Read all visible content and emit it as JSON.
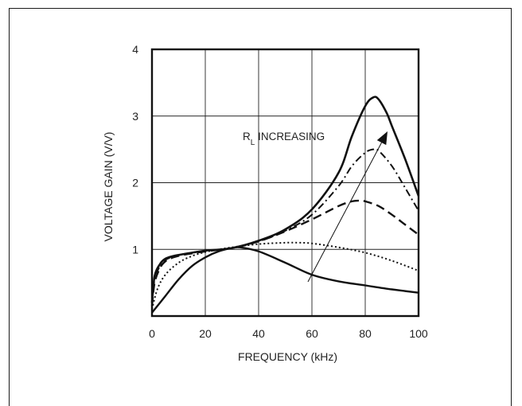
{
  "chart_data": {
    "type": "line",
    "title": "",
    "xlabel": "FREQUENCY (kHz)",
    "ylabel": "VOLTAGE GAIN (V/V)",
    "xlim": [
      0,
      100
    ],
    "ylim": [
      0,
      4
    ],
    "x_ticks": [
      0,
      20,
      40,
      60,
      80,
      100
    ],
    "y_ticks": [
      1,
      2,
      3,
      4
    ],
    "grid": true,
    "annotation": {
      "text_main": "R",
      "text_sub": "L",
      "text_rest": " INCREASING"
    },
    "series": [
      {
        "style": "solid-low",
        "x": [
          0,
          5,
          10,
          15,
          20,
          25,
          30,
          33,
          40,
          50,
          60,
          70,
          80,
          90,
          100
        ],
        "y": [
          0.05,
          0.3,
          0.55,
          0.75,
          0.88,
          0.97,
          1.02,
          1.03,
          0.97,
          0.8,
          0.62,
          0.52,
          0.46,
          0.4,
          0.35
        ]
      },
      {
        "style": "dotted",
        "x": [
          0,
          2,
          5,
          10,
          15,
          20,
          25,
          30,
          40,
          50,
          55,
          60,
          70,
          80,
          90,
          100
        ],
        "y": [
          0.1,
          0.4,
          0.62,
          0.8,
          0.9,
          0.96,
          1.0,
          1.03,
          1.08,
          1.1,
          1.1,
          1.09,
          1.03,
          0.95,
          0.83,
          0.68
        ]
      },
      {
        "style": "dashed",
        "x": [
          0,
          1,
          3,
          5,
          8,
          12,
          20,
          30,
          40,
          50,
          60,
          70,
          75,
          78,
          80,
          85,
          90,
          95,
          100
        ],
        "y": [
          0.15,
          0.5,
          0.72,
          0.82,
          0.88,
          0.92,
          0.97,
          1.02,
          1.12,
          1.27,
          1.45,
          1.65,
          1.72,
          1.73,
          1.72,
          1.65,
          1.52,
          1.37,
          1.22
        ]
      },
      {
        "style": "dash-dot",
        "x": [
          0,
          1,
          3,
          5,
          8,
          12,
          20,
          30,
          40,
          50,
          60,
          70,
          75,
          80,
          83,
          85,
          90,
          95,
          100
        ],
        "y": [
          0.18,
          0.55,
          0.75,
          0.84,
          0.89,
          0.93,
          0.98,
          1.02,
          1.12,
          1.28,
          1.52,
          1.95,
          2.25,
          2.45,
          2.5,
          2.48,
          2.25,
          1.92,
          1.58
        ]
      },
      {
        "style": "solid-high",
        "x": [
          0,
          1,
          3,
          5,
          8,
          12,
          20,
          30,
          40,
          50,
          60,
          70,
          75,
          80,
          83,
          85,
          88,
          90,
          95,
          100
        ],
        "y": [
          0.2,
          0.6,
          0.78,
          0.86,
          0.9,
          0.93,
          0.98,
          1.02,
          1.13,
          1.3,
          1.6,
          2.15,
          2.7,
          3.15,
          3.28,
          3.25,
          3.05,
          2.85,
          2.35,
          1.8
        ]
      }
    ]
  }
}
